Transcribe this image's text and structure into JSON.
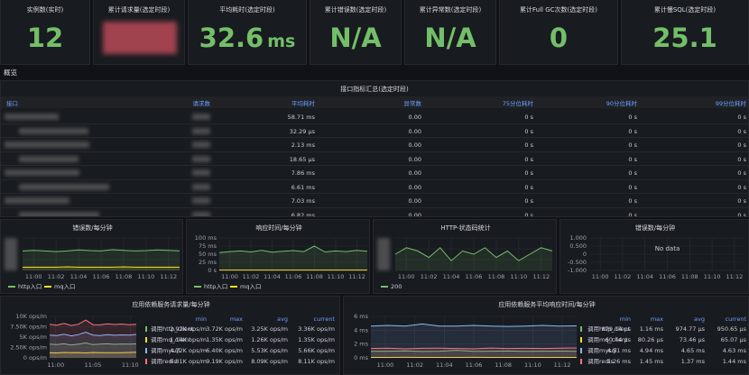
{
  "stats": [
    {
      "title": "实例数(实时)",
      "value": 12
    },
    {
      "title": "累计请求量(选定时段)"
    },
    {
      "title": "平均耗时(选定时段)",
      "value": 32.6,
      "unit": "ms"
    },
    {
      "title": "累计错误数(选定时段)",
      "value": "N/A"
    },
    {
      "title": "累计异常数(选定时段)",
      "value": "N/A"
    },
    {
      "title": "累计Full GC次数(选定时段)",
      "value": 0
    },
    {
      "title": "累计慢SQL(选定时段)",
      "value": 25.1
    }
  ],
  "row_title": "概览",
  "table": {
    "title": "接口指标汇总(选定时段)",
    "columns": [
      "接口",
      "请求数",
      "平均耗时",
      "异常数",
      "75分位耗时",
      "90分位耗时",
      "99分位耗时"
    ],
    "rows": [
      [
        "58.71 ms",
        "0.00",
        "0 s",
        "0 s",
        "0 s"
      ],
      [
        "32.29 µs",
        "0.00",
        "0 s",
        "0 s",
        "0 s"
      ],
      [
        "2.13 ms",
        "0.00",
        "0 s",
        "0 s",
        "0 s"
      ],
      [
        "18.65 µs",
        "0.00",
        "0 s",
        "0 s",
        "0 s"
      ],
      [
        "7.86 ms",
        "0.00",
        "0 s",
        "0 s",
        "0 s"
      ],
      [
        "6.61 ms",
        "0.00",
        "0 s",
        "0 s",
        "0 s"
      ],
      [
        "7.03 ms",
        "0.00",
        "0 s",
        "0 s",
        "0 s"
      ],
      [
        "6.82 ms",
        "0.00",
        "0 s",
        "0 s",
        "0 s"
      ]
    ]
  },
  "panels": [
    {
      "title": "错误数/每分钟",
      "xticks": [
        "11:00",
        "11:02",
        "11:04",
        "11:06",
        "11:08",
        "11:10",
        "11:12"
      ],
      "ylim": [
        0,
        10
      ],
      "series": [
        {
          "name": "http入口",
          "color": "#73bf69",
          "values": [
            6,
            6.2,
            6,
            5.8,
            6,
            6.3,
            6.1,
            6,
            6.4,
            6.2,
            6,
            6.1,
            6.3,
            6.2,
            6
          ]
        },
        {
          "name": "mq入口",
          "color": "#fade2a",
          "values": [
            1,
            1,
            1,
            1,
            1.1,
            1,
            1,
            1,
            1,
            1.1,
            1,
            1,
            1,
            1,
            1
          ]
        }
      ]
    },
    {
      "title": "响应时间/每分钟",
      "xticks": [
        "11:00",
        "11:02",
        "11:04",
        "11:06",
        "11:08",
        "11:10",
        "11:12"
      ],
      "ylim": [
        0,
        100
      ],
      "yticks": [
        {
          "value": 0,
          "label": "0 s"
        },
        {
          "value": 25,
          "label": "25 ms"
        },
        {
          "value": 50,
          "label": "50 ms"
        },
        {
          "value": 75,
          "label": "75 ms"
        },
        {
          "value": 100,
          "label": "100 ms"
        }
      ],
      "series": [
        {
          "name": "http入口",
          "color": "#73bf69",
          "values": [
            55,
            58,
            60,
            57,
            62,
            56,
            59,
            61,
            58,
            75,
            57,
            60,
            58,
            62,
            59
          ]
        },
        {
          "name": "mq入口",
          "color": "#fade2a",
          "values": [
            1,
            1,
            1,
            1,
            1,
            1,
            1,
            1,
            1,
            1,
            1,
            1,
            1,
            1,
            1
          ]
        }
      ]
    },
    {
      "title": "HTTP-状态码统计",
      "xticks": [
        "11:00",
        "11:02",
        "11:04",
        "11:06",
        "11:08",
        "11:10",
        "11:12"
      ],
      "ylim": [
        0,
        10
      ],
      "series": [
        {
          "name": "200",
          "color": "#73bf69",
          "values": [
            5,
            7,
            6,
            4,
            7,
            3,
            6,
            5,
            7,
            4,
            6,
            3,
            5,
            7,
            6
          ]
        }
      ]
    },
    {
      "title": "错误数/每分钟",
      "message": "No data",
      "xticks": [
        "11:00",
        "11:02",
        "11:04",
        "11:06",
        "11:08",
        "11:10",
        "11:12"
      ],
      "ylim": [
        -1,
        1
      ],
      "yticks": [
        {
          "value": -1,
          "label": "-1.000"
        },
        {
          "value": -0.5,
          "label": "-0.500"
        },
        0,
        {
          "value": 0.5,
          "label": "0.500"
        },
        {
          "value": 1,
          "label": "1.000"
        }
      ],
      "series": []
    },
    {
      "title": "应用依赖服务请求量/每分钟",
      "xticks": [
        "11:00",
        "11:05",
        "11:10"
      ],
      "ylim": [
        0,
        10000
      ],
      "yticks": [
        {
          "value": 0,
          "label": "0 ops/m"
        },
        {
          "value": 2500,
          "label": "2.50K ops/m"
        },
        {
          "value": 5000,
          "label": "5K ops/m"
        },
        {
          "value": 7500,
          "label": "7.50K ops/m"
        },
        {
          "value": 10000,
          "label": "10K ops/m"
        }
      ],
      "legend_columns": [
        "min",
        "max",
        "avg",
        "current"
      ],
      "series": [
        {
          "name": "调用http_client",
          "color": "#73bf69",
          "values": [
            3300,
            3200,
            3400,
            3100,
            3300,
            3600,
            3200,
            3300,
            3400,
            3250,
            3350,
            3300,
            3360
          ],
          "stats": [
            "2.92K ops/m",
            "3.72K ops/m",
            "3.25K ops/m",
            "3.36K ops/m"
          ]
        },
        {
          "name": "调用mq_client",
          "color": "#fade2a",
          "values": [
            1250,
            1200,
            1300,
            1250,
            1280,
            1200,
            1300,
            1250,
            1270,
            1240,
            1260,
            1300,
            1350
          ],
          "stats": [
            "1.14K ops/m",
            "1.35K ops/m",
            "1.26K ops/m",
            "1.35K ops/m"
          ]
        },
        {
          "name": "调用mysql",
          "color": "#8ab8ff",
          "values": [
            5500,
            5400,
            5700,
            5300,
            5600,
            6200,
            5500,
            5400,
            5600,
            5450,
            5550,
            5500,
            5660
          ],
          "stats": [
            "4.72K ops/m",
            "6.40K ops/m",
            "5.53K ops/m",
            "5.66K ops/m"
          ]
        },
        {
          "name": "调用redis",
          "color": "#ff7383",
          "values": [
            8100,
            7900,
            8300,
            7800,
            8100,
            9100,
            8000,
            7950,
            8200,
            8050,
            8150,
            8000,
            8110
          ],
          "stats": [
            "6.81K ops/m",
            "9.19K ops/m",
            "8.09K ops/m",
            "8.11K ops/m"
          ]
        }
      ]
    },
    {
      "title": "应用依赖服务平均响应时间/每分钟",
      "xticks": [
        "11:00",
        "11:02",
        "11:04",
        "11:06",
        "11:08",
        "11:10",
        "11:12"
      ],
      "ylim": [
        0,
        6
      ],
      "yticks": [
        {
          "value": 0,
          "label": "0 ms"
        },
        {
          "value": 2,
          "label": "2 ms"
        },
        {
          "value": 4,
          "label": "4 ms"
        },
        {
          "value": 6,
          "label": "6 ms"
        }
      ],
      "legend_columns": [
        "min",
        "max",
        "avg",
        "current"
      ],
      "series": [
        {
          "name": "调用http_client",
          "color": "#73bf69",
          "values": [
            0.95,
            0.97,
            1.0,
            0.93,
            0.96,
            1.1,
            0.95,
            0.97,
            0.99,
            0.94,
            0.96,
            0.98,
            0.95
          ],
          "stats": [
            "879.14 µs",
            "1.16 ms",
            "974.77 µs",
            "950.65 µs"
          ]
        },
        {
          "name": "调用mq_client",
          "color": "#fade2a",
          "values": [
            0.07,
            0.07,
            0.08,
            0.07,
            0.07,
            0.07,
            0.08,
            0.07,
            0.07,
            0.07,
            0.07,
            0.07,
            0.065
          ],
          "stats": [
            "60.44 µs",
            "80.26 µs",
            "73.46 µs",
            "65.07 µs"
          ]
        },
        {
          "name": "调用mysql",
          "color": "#8ab8ff",
          "values": [
            4.6,
            4.7,
            4.6,
            4.9,
            4.6,
            4.6,
            4.7,
            4.6,
            4.55,
            4.6,
            4.7,
            4.6,
            4.63
          ],
          "stats": [
            "4.51 ms",
            "4.94 ms",
            "4.65 ms",
            "4.63 ms"
          ]
        },
        {
          "name": "调用redis",
          "color": "#ff7383",
          "values": [
            1.35,
            1.4,
            1.3,
            1.38,
            1.4,
            1.35,
            1.3,
            1.42,
            1.36,
            1.38,
            1.35,
            1.4,
            1.44
          ],
          "stats": [
            "1.26 ms",
            "1.45 ms",
            "1.37 ms",
            "1.44 ms"
          ]
        }
      ]
    }
  ]
}
